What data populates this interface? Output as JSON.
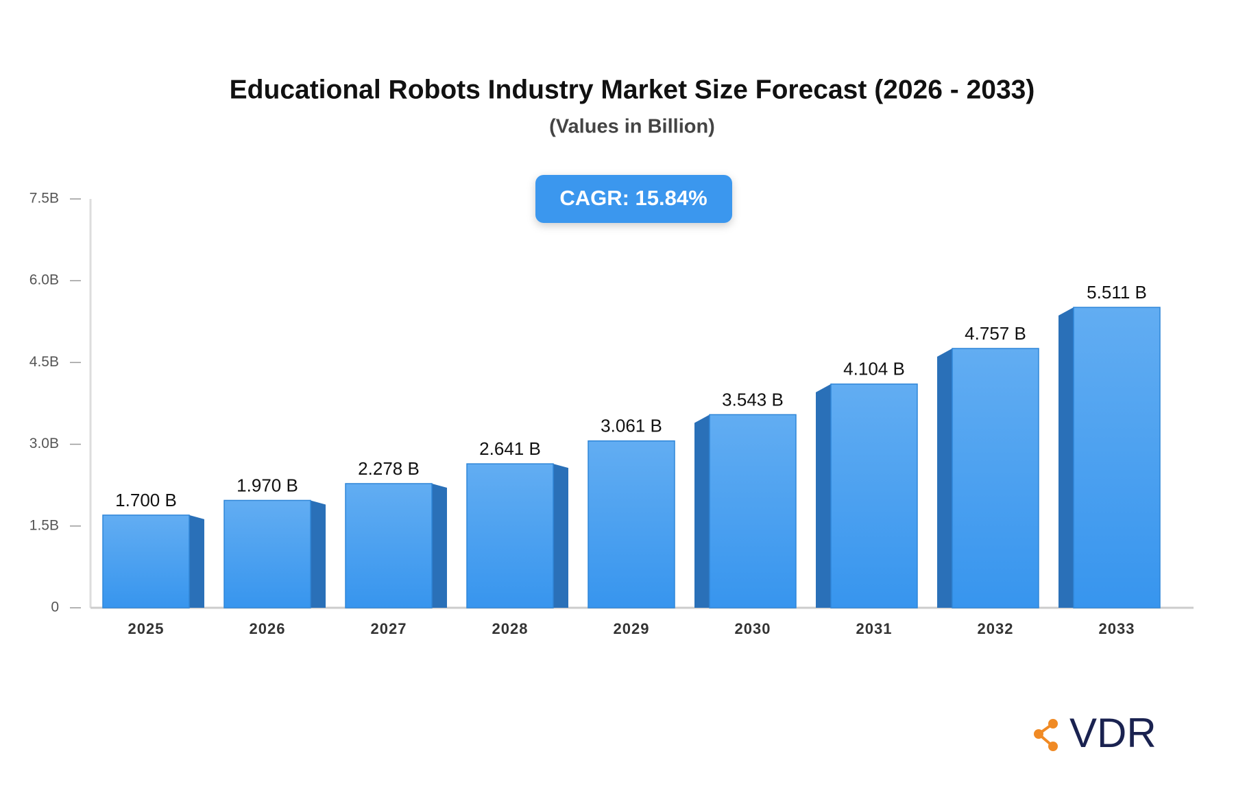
{
  "chart_data": {
    "type": "bar",
    "title": "Educational Robots Industry Market Size Forecast (2026 - 2033)",
    "subtitle": "(Values in Billion)",
    "annotation": "CAGR: 15.84%",
    "logo": "VDR",
    "categories": [
      "2025",
      "2026",
      "2027",
      "2028",
      "2029",
      "2030",
      "2031",
      "2032",
      "2033"
    ],
    "values": [
      1.7,
      1.97,
      2.278,
      2.641,
      3.061,
      3.543,
      4.104,
      4.757,
      5.511
    ],
    "value_labels": [
      "1.700 B",
      "1.970 B",
      "2.278 B",
      "2.641 B",
      "3.061 B",
      "3.543 B",
      "4.104 B",
      "4.757 B",
      "5.511 B"
    ],
    "color": "#3f9bef",
    "ylim": [
      0,
      7.5
    ],
    "yticks": [
      0,
      {
        "value": 1.5,
        "label": "1.5B"
      },
      {
        "value": 3,
        "label": "3.0B"
      },
      {
        "value": 4.5,
        "label": "4.5B"
      },
      {
        "value": 6,
        "label": "6.0B"
      },
      {
        "value": 7.5,
        "label": "7.5B"
      }
    ]
  }
}
